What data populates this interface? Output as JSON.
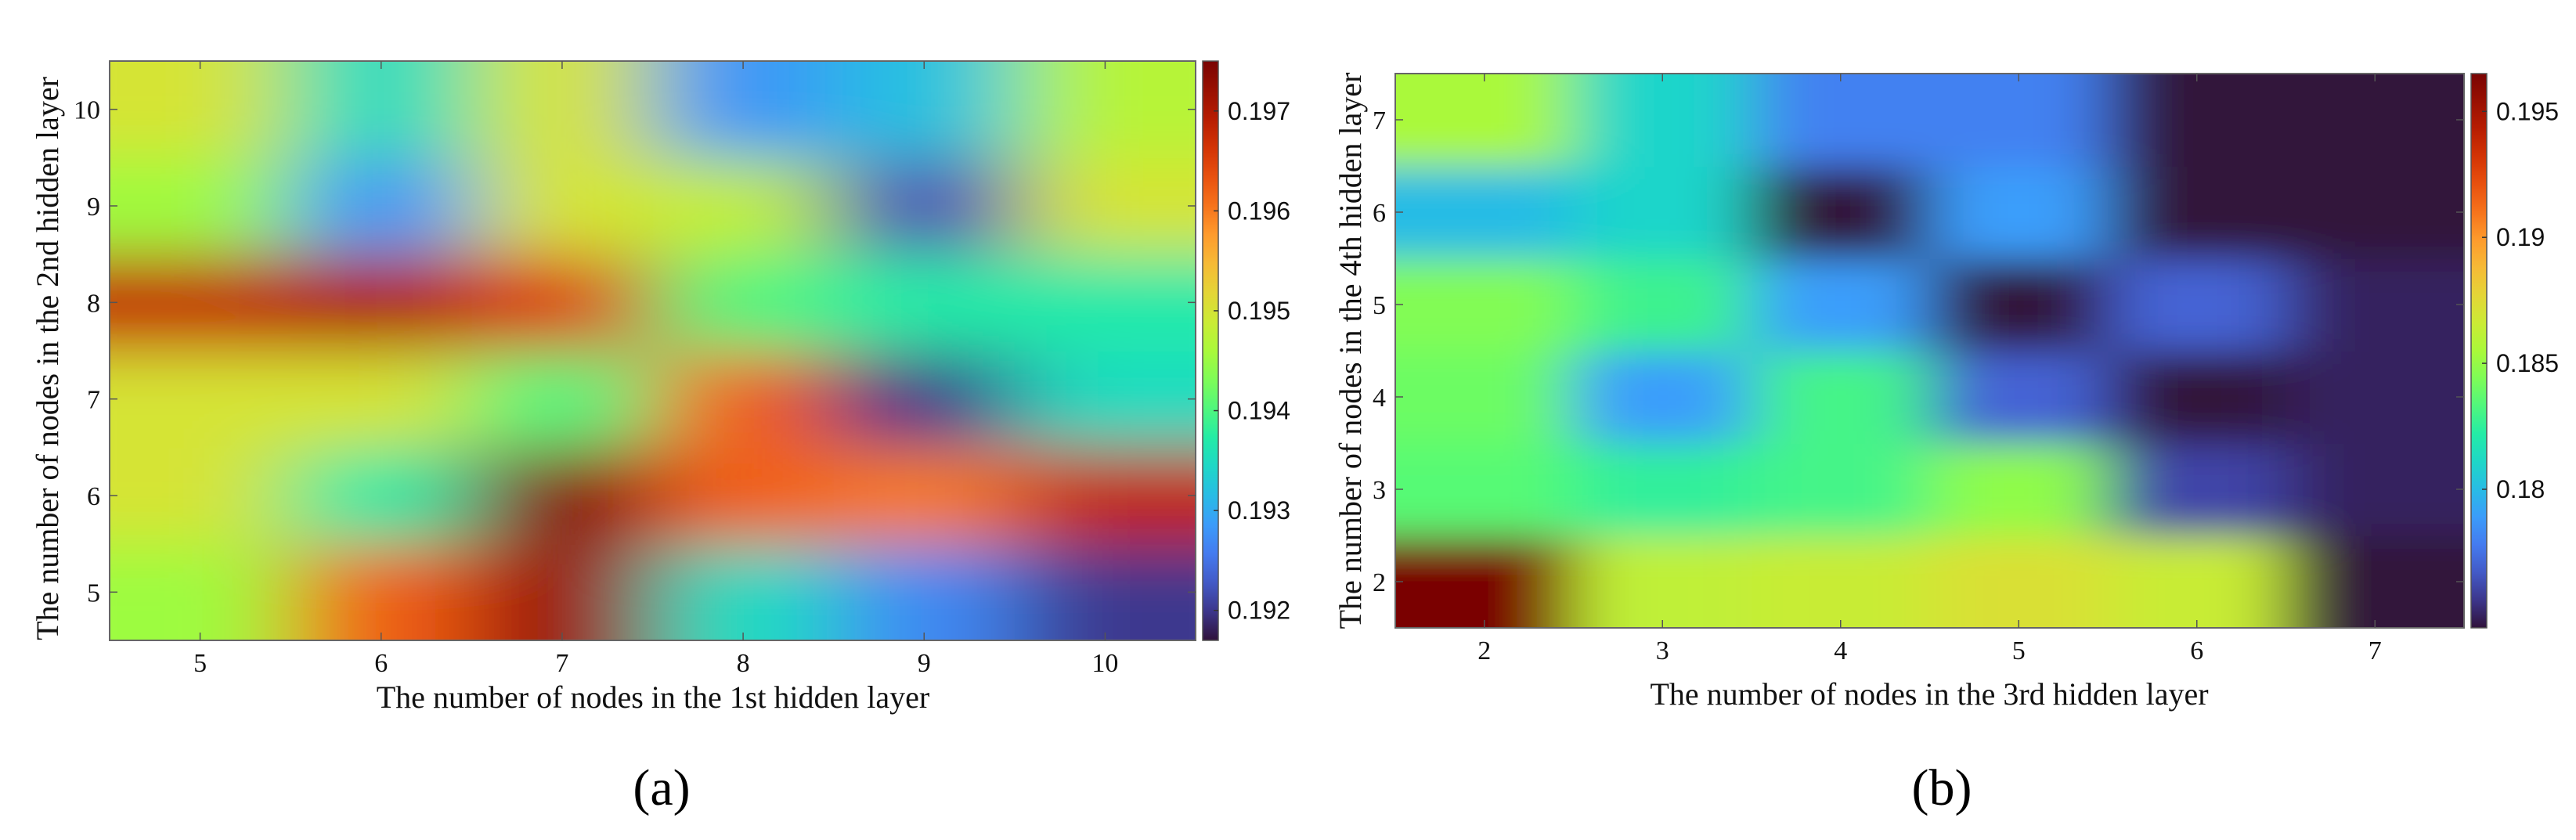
{
  "chart_data": [
    {
      "type": "heatmap",
      "panel_label": "(a)",
      "xlabel": "The number of nodes in the 1st hidden layer",
      "ylabel": "The number of nodes in the 2nd hidden layer",
      "x": [
        5,
        6,
        7,
        8,
        9,
        10
      ],
      "y": [
        5,
        6,
        7,
        8,
        9,
        10
      ],
      "xlim": [
        4.5,
        10.5
      ],
      "ylim": [
        4.5,
        10.5
      ],
      "z": [
        [
          0.1945,
          0.1962,
          0.1972,
          0.1935,
          0.1927,
          0.192
        ],
        [
          0.195,
          0.1937,
          0.1974,
          0.1962,
          0.196,
          0.1968
        ],
        [
          0.195,
          0.195,
          0.194,
          0.1962,
          0.192,
          0.1935
        ],
        [
          0.1968,
          0.197,
          0.1965,
          0.194,
          0.1937,
          0.1937
        ],
        [
          0.1945,
          0.1928,
          0.195,
          0.1948,
          0.1922,
          0.195
        ],
        [
          0.195,
          0.1935,
          0.195,
          0.1928,
          0.1932,
          0.1947
        ]
      ],
      "colorbar": {
        "min": 0.1917,
        "max": 0.1975,
        "ticks": [
          0.192,
          0.193,
          0.194,
          0.195,
          0.196,
          0.197
        ]
      },
      "colormap": "turbo"
    },
    {
      "type": "heatmap",
      "panel_label": "(b)",
      "xlabel": "The number of nodes in the 3rd hidden layer",
      "ylabel": "The number of nodes in the 4th hidden layer",
      "x": [
        2,
        3,
        4,
        5,
        6,
        7
      ],
      "y": [
        2,
        3,
        4,
        5,
        6,
        7
      ],
      "xlim": [
        1.5,
        7.5
      ],
      "ylim": [
        1.5,
        7.5
      ],
      "z": [
        [
          0.1965,
          0.1862,
          0.1865,
          0.1872,
          0.1865,
          0.1745
        ],
        [
          0.1835,
          0.1825,
          0.183,
          0.1848,
          0.176,
          0.175
        ],
        [
          0.184,
          0.179,
          0.183,
          0.177,
          0.1735,
          0.175
        ],
        [
          0.1845,
          0.1828,
          0.179,
          0.172,
          0.177,
          0.175
        ],
        [
          0.18,
          0.181,
          0.1715,
          0.179,
          0.1745,
          0.1745
        ],
        [
          0.1855,
          0.181,
          0.178,
          0.178,
          0.1745,
          0.1745
        ]
      ],
      "colorbar": {
        "min": 0.1745,
        "max": 0.1965,
        "ticks": [
          0.18,
          0.185,
          0.19,
          0.195
        ]
      },
      "colormap": "turbo"
    }
  ]
}
